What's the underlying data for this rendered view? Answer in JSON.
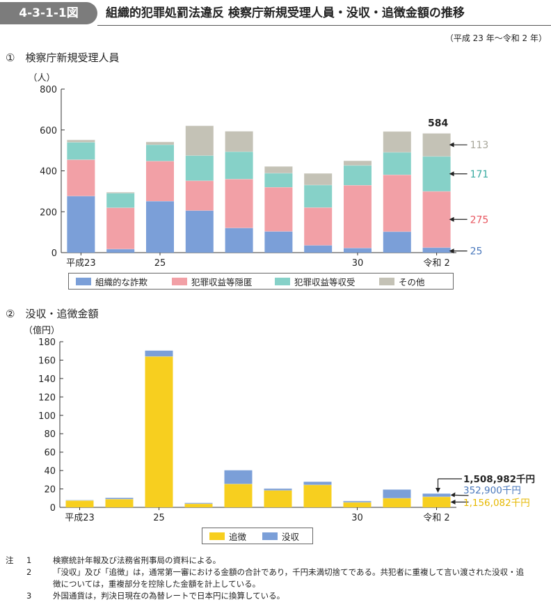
{
  "header": {
    "figure_no": "4-3-1-1図",
    "title": "組織的犯罪処罰法違反 検察庁新規受理人員・没収・追徴金額の推移",
    "period": "（平成 23 年〜令和 2 年）"
  },
  "colors": {
    "blue": "#7b9fd8",
    "pink": "#f2a0a6",
    "teal": "#86d1c8",
    "gray": "#c4c2b6",
    "yellow": "#f7cf1f",
    "label_gray": "#a7a69a",
    "label_teal": "#38aaa0",
    "label_pink": "#e8565f",
    "label_blue": "#4a78bc",
    "label_yellow": "#e6b800"
  },
  "section1": {
    "title": "①　検察庁新規受理人員"
  },
  "section2": {
    "title": "②　没収・追徴金額"
  },
  "chart_data": [
    {
      "type": "bar",
      "stacked": true,
      "title": "検察庁新規受理人員",
      "ylabel": "（人）",
      "ylim": [
        0,
        800
      ],
      "yticks": [
        "0",
        "200",
        "400",
        "600",
        "800"
      ],
      "categories": [
        "平成23",
        "24",
        "25",
        "26",
        "27",
        "28",
        "29",
        "30",
        "令和元",
        "令和 2"
      ],
      "x_tick_labels": [
        "平成23",
        "",
        "25",
        "",
        "",
        "",
        "",
        "30",
        "",
        "令和 2"
      ],
      "series": [
        {
          "name": "組織的な詐欺",
          "color": "#7b9fd8",
          "values": [
            277,
            18,
            252,
            206,
            121,
            104,
            36,
            23,
            103,
            25
          ]
        },
        {
          "name": "犯罪収益等隠匿",
          "color": "#f2a0a6",
          "values": [
            178,
            202,
            196,
            146,
            239,
            216,
            185,
            307,
            278,
            275
          ]
        },
        {
          "name": "犯罪収益等収受",
          "color": "#86d1c8",
          "values": [
            85,
            71,
            80,
            123,
            134,
            69,
            110,
            97,
            110,
            171
          ]
        },
        {
          "name": "その他",
          "color": "#c4c2b6",
          "values": [
            12,
            5,
            14,
            146,
            100,
            33,
            57,
            23,
            102,
            113
          ]
        }
      ],
      "totals_label": {
        "last": "584"
      },
      "last_labels": {
        "gray": "113",
        "teal": "171",
        "pink": "275",
        "blue": "25"
      },
      "legend": [
        "組織的な詐欺",
        "犯罪収益等隠匿",
        "犯罪収益等収受",
        "その他"
      ],
      "legend_position": "bottom"
    },
    {
      "type": "bar",
      "stacked": true,
      "title": "没収・追徴金額",
      "ylabel": "（億円）",
      "ylim": [
        0,
        180
      ],
      "yticks": [
        "0",
        "20",
        "40",
        "60",
        "80",
        "100",
        "120",
        "140",
        "160",
        "180"
      ],
      "categories": [
        "平成23",
        "24",
        "25",
        "26",
        "27",
        "28",
        "29",
        "30",
        "令和元",
        "令和 2"
      ],
      "x_tick_labels": [
        "平成23",
        "",
        "25",
        "",
        "",
        "",
        "",
        "30",
        "",
        "令和 2"
      ],
      "series": [
        {
          "name": "追徴",
          "color": "#f7cf1f",
          "values": [
            7.5,
            9,
            164,
            4,
            25.5,
            18.5,
            24.5,
            5.5,
            10,
            11.56
          ]
        },
        {
          "name": "没収",
          "color": "#7b9fd8",
          "values": [
            0.5,
            1.5,
            6.5,
            1,
            15,
            2,
            3.5,
            1.5,
            9.5,
            3.53
          ]
        }
      ],
      "annotations": {
        "total": "1,508,982千円",
        "confiscation": "352,900千円",
        "collection": "1,156,082千円"
      },
      "legend": [
        "追徴",
        "没収"
      ],
      "legend_position": "bottom"
    }
  ],
  "notes": {
    "head": "注",
    "items": [
      {
        "num": "1",
        "text": "検察統計年報及び法務省刑事局の資料による。"
      },
      {
        "num": "2",
        "text": "「没収」及び「追徴」は，通常第一審における金額の合計であり，千円未満切捨てである。共犯者に重複して言い渡された没収・追"
      },
      {
        "num": "",
        "text": "徴については，重複部分を控除した金額を計上している。"
      },
      {
        "num": "3",
        "text": "外国通貨は，判決日現在の為替レートで日本円に換算している。"
      }
    ]
  }
}
